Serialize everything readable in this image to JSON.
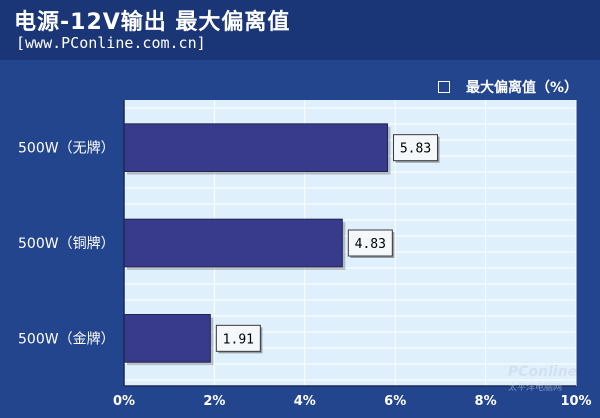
{
  "title": "电源-12V输出 最大偏离值",
  "subtitle": "[www.PConline.com.cn]",
  "watermark": {
    "main": "PConline",
    "sub": "太平洋电脑网"
  },
  "colors": {
    "background": "#22458e",
    "plot_bg": "#dff0fc",
    "bar": "#383a8c",
    "bar_edge": "#23244f",
    "label_box": "#f4f8fb"
  },
  "chart_data": {
    "type": "bar",
    "orientation": "horizontal",
    "title": "电源-12V输出 最大偏离值",
    "categories": [
      "500W（无牌）",
      "500W（铜牌）",
      "500W（金牌）"
    ],
    "series": [
      {
        "name": "最大偏离值（%）",
        "values": [
          5.83,
          4.83,
          1.91
        ]
      }
    ],
    "value_labels": [
      "5.83",
      "4.83",
      "1.91"
    ],
    "xlim": [
      0,
      10
    ],
    "xticks": [
      0,
      2,
      4,
      6,
      8,
      10
    ],
    "xtick_labels": [
      "0%",
      "2%",
      "4%",
      "6%",
      "8%",
      "10%"
    ],
    "grid": true,
    "legend": "top-right"
  }
}
